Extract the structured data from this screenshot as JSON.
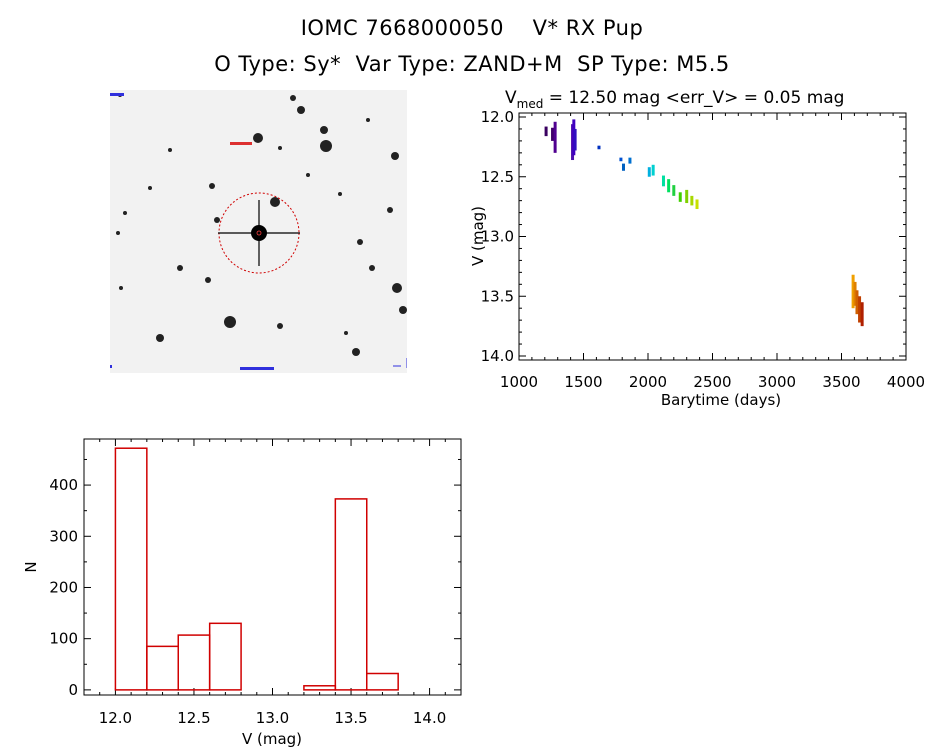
{
  "header": {
    "line1": "IOMC 7668000050    V* RX Pup",
    "line2": "O Type: Sy*  Var Type: ZAND+M  SP Type: M5.5"
  },
  "finder_image": {
    "description_icon": "star-field-icon",
    "colors": {
      "background": "#f2f2f2",
      "circle": "#d00000",
      "labels": "#0000cc"
    }
  },
  "colors": {
    "hist": "#d00000",
    "axis": "#000000"
  },
  "chart_data": [
    {
      "type": "scatter",
      "title_main": "V",
      "title_sub": "med",
      "title_rest": " = 12.50 mag <err_V> = 0.05 mag",
      "xlabel": "Barytime (days)",
      "ylabel": "V (mag)",
      "xlim": [
        1000,
        4000
      ],
      "ylim": [
        14.0,
        12.0
      ],
      "y_inverted": true,
      "xticks": [
        1000,
        1500,
        2000,
        2500,
        3000,
        3500,
        4000
      ],
      "yticks": [
        "12.0",
        "12.5",
        "13.0",
        "13.5",
        "14.0"
      ],
      "clusters": [
        {
          "x": 1210,
          "ymin": 12.08,
          "ymax": 12.16,
          "color": "#3a0060"
        },
        {
          "x": 1260,
          "ymin": 12.09,
          "ymax": 12.2,
          "color": "#40006a"
        },
        {
          "x": 1280,
          "ymin": 12.04,
          "ymax": 12.3,
          "color": "#500090"
        },
        {
          "x": 1415,
          "ymin": 12.06,
          "ymax": 12.36,
          "color": "#5010b0"
        },
        {
          "x": 1425,
          "ymin": 12.02,
          "ymax": 12.32,
          "color": "#4000c0"
        },
        {
          "x": 1435,
          "ymin": 12.1,
          "ymax": 12.28,
          "color": "#3010c0"
        },
        {
          "x": 1620,
          "ymin": 12.24,
          "ymax": 12.27,
          "color": "#0030c0"
        },
        {
          "x": 1790,
          "ymin": 12.34,
          "ymax": 12.37,
          "color": "#0050d0"
        },
        {
          "x": 1810,
          "ymin": 12.39,
          "ymax": 12.45,
          "color": "#0060c0"
        },
        {
          "x": 1860,
          "ymin": 12.34,
          "ymax": 12.39,
          "color": "#0070d0"
        },
        {
          "x": 2010,
          "ymin": 12.42,
          "ymax": 12.5,
          "color": "#00b0e0"
        },
        {
          "x": 2040,
          "ymin": 12.4,
          "ymax": 12.49,
          "color": "#00d0d0"
        },
        {
          "x": 2120,
          "ymin": 12.49,
          "ymax": 12.58,
          "color": "#00e0a0"
        },
        {
          "x": 2160,
          "ymin": 12.52,
          "ymax": 12.63,
          "color": "#00e060"
        },
        {
          "x": 2200,
          "ymin": 12.57,
          "ymax": 12.66,
          "color": "#20d040"
        },
        {
          "x": 2250,
          "ymin": 12.63,
          "ymax": 12.71,
          "color": "#40d000"
        },
        {
          "x": 2300,
          "ymin": 12.61,
          "ymax": 12.72,
          "color": "#80d000"
        },
        {
          "x": 2340,
          "ymin": 12.66,
          "ymax": 12.74,
          "color": "#a8d800"
        },
        {
          "x": 2380,
          "ymin": 12.69,
          "ymax": 12.77,
          "color": "#c8e000"
        },
        {
          "x": 3590,
          "ymin": 13.32,
          "ymax": 13.6,
          "color": "#f0a000"
        },
        {
          "x": 3605,
          "ymin": 13.38,
          "ymax": 13.58,
          "color": "#e08000"
        },
        {
          "x": 3620,
          "ymin": 13.45,
          "ymax": 13.65,
          "color": "#d06000"
        },
        {
          "x": 3640,
          "ymin": 13.5,
          "ymax": 13.72,
          "color": "#c04000"
        },
        {
          "x": 3660,
          "ymin": 13.55,
          "ymax": 13.75,
          "color": "#b02000"
        }
      ]
    },
    {
      "type": "bar",
      "subtype": "histogram",
      "xlabel": "V (mag)",
      "ylabel": "N",
      "xlim": [
        11.8,
        14.2
      ],
      "ylim": [
        -10,
        490
      ],
      "xticks": [
        "12.0",
        "12.5",
        "13.0",
        "13.5",
        "14.0"
      ],
      "yticks": [
        "0",
        "100",
        "200",
        "300",
        "400"
      ],
      "bin_width": 0.2,
      "bins": [
        {
          "x0": 12.0,
          "value": 472
        },
        {
          "x0": 12.2,
          "value": 85
        },
        {
          "x0": 12.4,
          "value": 107
        },
        {
          "x0": 12.6,
          "value": 130
        },
        {
          "x0": 12.8,
          "value": 0
        },
        {
          "x0": 13.0,
          "value": 0
        },
        {
          "x0": 13.2,
          "value": 8
        },
        {
          "x0": 13.4,
          "value": 373
        },
        {
          "x0": 13.6,
          "value": 32
        }
      ]
    }
  ]
}
